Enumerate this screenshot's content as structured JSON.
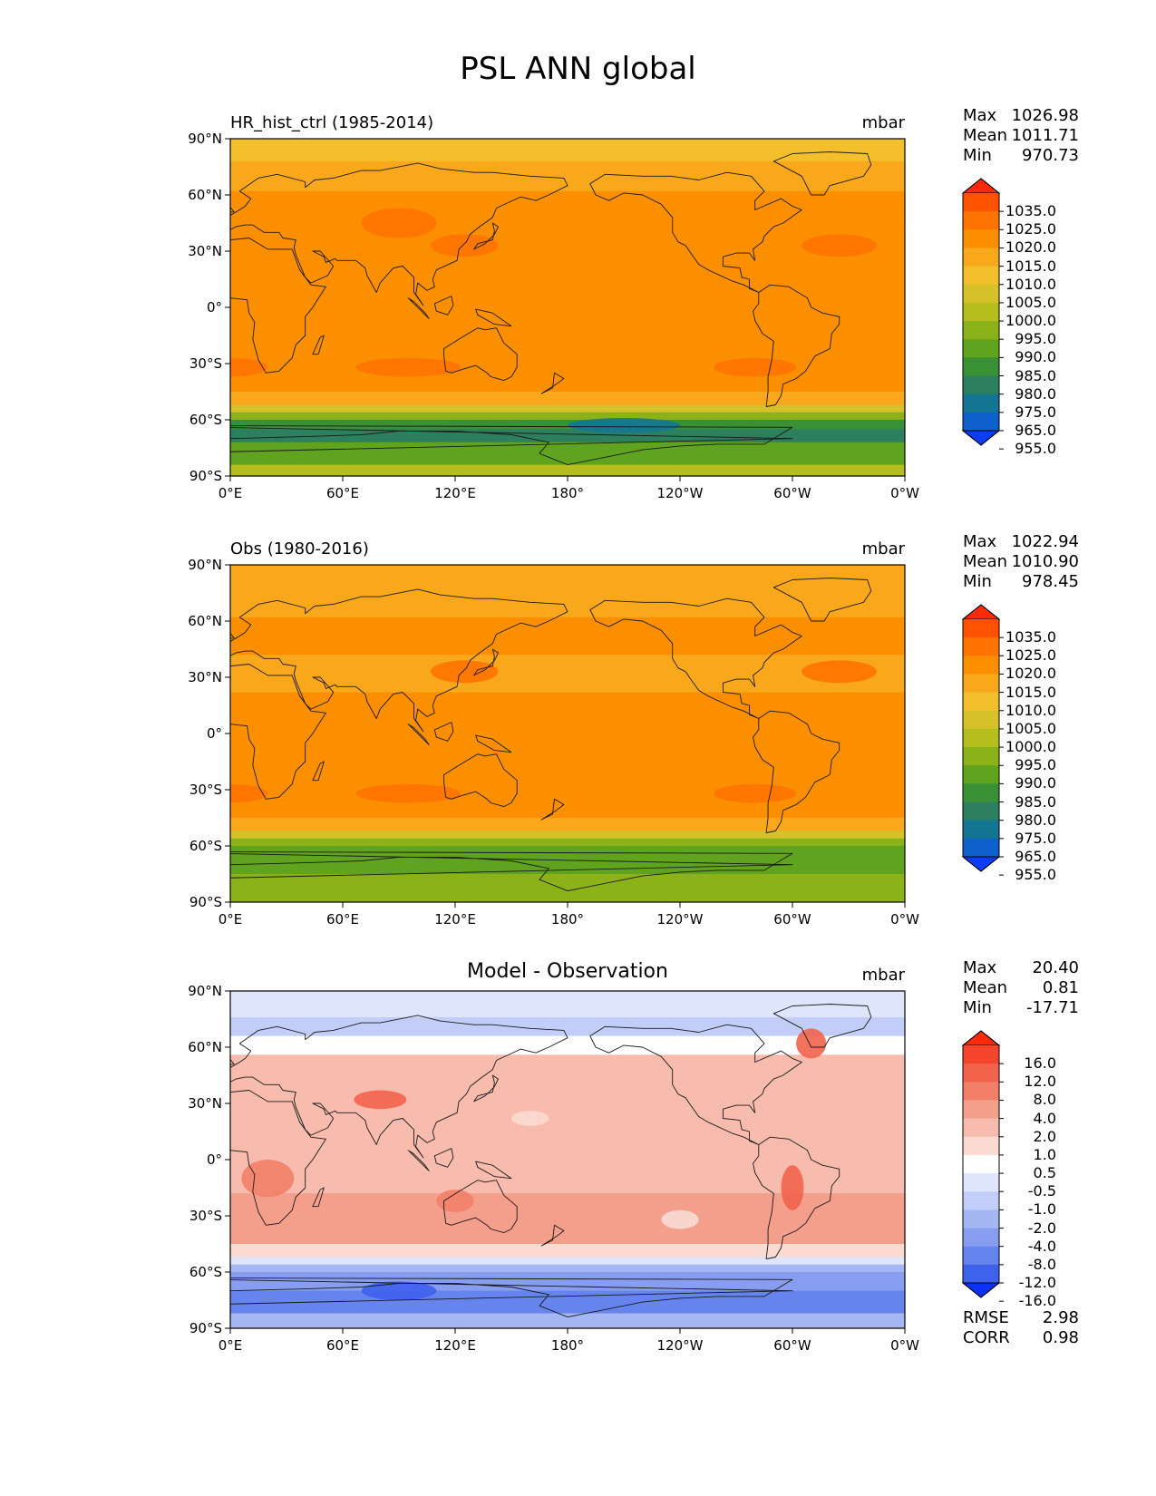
{
  "title": "PSL ANN global",
  "panels": [
    {
      "name": "model",
      "title": "HR_hist_ctrl (1985-2014)",
      "title_style": "left",
      "units": "mbar",
      "stats": [
        {
          "label": "Max",
          "value": "1026.98"
        },
        {
          "label": "Mean",
          "value": "1011.71"
        },
        {
          "label": "Min",
          "value": "970.73"
        }
      ],
      "colorbar": {
        "levels": [
          "1035.0",
          "1025.0",
          "1020.0",
          "1015.0",
          "1010.0",
          "1005.0",
          "1000.0",
          "995.0",
          "990.0",
          "985.0",
          "980.0",
          "975.0",
          "965.0",
          "955.0"
        ],
        "colors": [
          "#ff2a0a",
          "#ff5200",
          "#ff7300",
          "#fb8f00",
          "#f9a81b",
          "#f3c02c",
          "#d5c22a",
          "#b6bd1f",
          "#8cb21a",
          "#5fa31e",
          "#3a9035",
          "#2c8060",
          "#147592",
          "#0f5fcc",
          "#0a3df5"
        ]
      },
      "extra_stats": []
    },
    {
      "name": "observation",
      "title": "Obs (1980-2016)",
      "title_style": "left",
      "units": "mbar",
      "stats": [
        {
          "label": "Max",
          "value": "1022.94"
        },
        {
          "label": "Mean",
          "value": "1010.90"
        },
        {
          "label": "Min",
          "value": "978.45"
        }
      ],
      "colorbar": {
        "levels": [
          "1035.0",
          "1025.0",
          "1020.0",
          "1015.0",
          "1010.0",
          "1005.0",
          "1000.0",
          "995.0",
          "990.0",
          "985.0",
          "980.0",
          "975.0",
          "965.0",
          "955.0"
        ],
        "colors": [
          "#ff2a0a",
          "#ff5200",
          "#ff7300",
          "#fb8f00",
          "#f9a81b",
          "#f3c02c",
          "#d5c22a",
          "#b6bd1f",
          "#8cb21a",
          "#5fa31e",
          "#3a9035",
          "#2c8060",
          "#147592",
          "#0f5fcc",
          "#0a3df5"
        ]
      },
      "extra_stats": []
    },
    {
      "name": "difference",
      "title": "Model - Observation",
      "title_style": "center",
      "units": "mbar",
      "stats": [
        {
          "label": "Max",
          "value": "20.40"
        },
        {
          "label": "Mean",
          "value": "0.81"
        },
        {
          "label": "Min",
          "value": "-17.71"
        }
      ],
      "colorbar": {
        "levels": [
          "16.0",
          "12.0",
          "8.0",
          "4.0",
          "2.0",
          "1.0",
          "0.5",
          "-0.5",
          "-1.0",
          "-2.0",
          "-4.0",
          "-8.0",
          "-12.0",
          "-16.0"
        ],
        "colors": [
          "#ff2a0a",
          "#f6452d",
          "#f2634c",
          "#f27f68",
          "#f49e8c",
          "#f8bcae",
          "#fbdad2",
          "#ffffff",
          "#dfe6fb",
          "#c2cef8",
          "#a4b6f4",
          "#869df0",
          "#6584ed",
          "#3f62ec",
          "#0a32f6"
        ]
      },
      "extra_stats": [
        {
          "label": "RMSE",
          "value": "2.98"
        },
        {
          "label": "CORR",
          "value": "0.98"
        }
      ]
    }
  ],
  "axes": {
    "lat_ticks": [
      "90°N",
      "60°N",
      "30°N",
      "0°",
      "30°S",
      "60°S",
      "90°S"
    ],
    "lon_ticks": [
      "0°E",
      "60°E",
      "120°E",
      "180°",
      "120°W",
      "60°W",
      "0°W"
    ]
  }
}
